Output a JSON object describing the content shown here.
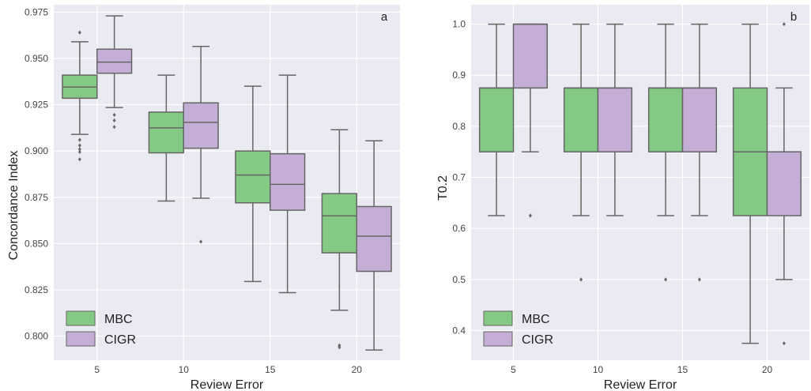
{
  "colors": {
    "MBC": "#84c984",
    "CIGR": "#c5aed5",
    "edge": "#666666",
    "panel_bg": "#eaeaf2",
    "grid": "#ffffff"
  },
  "chart_data": [
    {
      "type": "box",
      "panel_letter": "a",
      "xlabel": "Review Error",
      "ylabel": "Concordance Index",
      "categories": [
        "5",
        "10",
        "15",
        "20"
      ],
      "ylim": [
        0.787,
        0.979
      ],
      "yticks": [
        0.8,
        0.825,
        0.85,
        0.875,
        0.9,
        0.925,
        0.95,
        0.975
      ],
      "ytick_labels": [
        "0.800",
        "0.825",
        "0.850",
        "0.875",
        "0.900",
        "0.925",
        "0.950",
        "0.975"
      ],
      "grid": true,
      "legend_position": "lower-left",
      "series": [
        {
          "name": "MBC",
          "boxes": [
            {
              "whislo": 0.909,
              "q1": 0.9285,
              "med": 0.9345,
              "q3": 0.941,
              "whishi": 0.959,
              "fliers": [
                0.964,
                0.906,
                0.903,
                0.901,
                0.8995,
                0.8955
              ]
            },
            {
              "whislo": 0.873,
              "q1": 0.899,
              "med": 0.9125,
              "q3": 0.921,
              "whishi": 0.941,
              "fliers": []
            },
            {
              "whislo": 0.8295,
              "q1": 0.872,
              "med": 0.887,
              "q3": 0.9,
              "whishi": 0.935,
              "fliers": []
            },
            {
              "whislo": 0.814,
              "q1": 0.845,
              "med": 0.865,
              "q3": 0.877,
              "whishi": 0.9115,
              "fliers": [
                0.795,
                0.794
              ]
            }
          ]
        },
        {
          "name": "CIGR",
          "boxes": [
            {
              "whislo": 0.9235,
              "q1": 0.942,
              "med": 0.948,
              "q3": 0.955,
              "whishi": 0.973,
              "fliers": [
                0.9195,
                0.9165,
                0.913
              ]
            },
            {
              "whislo": 0.8745,
              "q1": 0.9015,
              "med": 0.9155,
              "q3": 0.926,
              "whishi": 0.9565,
              "fliers": [
                0.851
              ]
            },
            {
              "whislo": 0.8235,
              "q1": 0.868,
              "med": 0.882,
              "q3": 0.8985,
              "whishi": 0.941,
              "fliers": []
            },
            {
              "whislo": 0.7925,
              "q1": 0.835,
              "med": 0.854,
              "q3": 0.87,
              "whishi": 0.9055,
              "fliers": []
            }
          ]
        }
      ]
    },
    {
      "type": "box",
      "panel_letter": "b",
      "xlabel": "Review Error",
      "ylabel": "T0.2",
      "categories": [
        "5",
        "10",
        "15",
        "20"
      ],
      "ylim": [
        0.342,
        1.038
      ],
      "yticks": [
        0.4,
        0.5,
        0.6,
        0.7,
        0.8,
        0.9,
        1.0
      ],
      "ytick_labels": [
        "0.4",
        "0.5",
        "0.6",
        "0.7",
        "0.8",
        "0.9",
        "1.0"
      ],
      "grid": true,
      "legend_position": "lower-left",
      "series": [
        {
          "name": "MBC",
          "boxes": [
            {
              "whislo": 0.625,
              "q1": 0.75,
              "med": 0.875,
              "q3": 0.875,
              "whishi": 1.0,
              "fliers": []
            },
            {
              "whislo": 0.625,
              "q1": 0.75,
              "med": 0.875,
              "q3": 0.875,
              "whishi": 1.0,
              "fliers": [
                0.5
              ]
            },
            {
              "whislo": 0.625,
              "q1": 0.75,
              "med": 0.875,
              "q3": 0.875,
              "whishi": 1.0,
              "fliers": [
                0.5
              ]
            },
            {
              "whislo": 0.375,
              "q1": 0.625,
              "med": 0.75,
              "q3": 0.875,
              "whishi": 1.0,
              "fliers": []
            }
          ]
        },
        {
          "name": "CIGR",
          "boxes": [
            {
              "whislo": 0.75,
              "q1": 0.875,
              "med": 1.0,
              "q3": 1.0,
              "whishi": 1.0,
              "fliers": [
                0.625
              ]
            },
            {
              "whislo": 0.625,
              "q1": 0.75,
              "med": 0.875,
              "q3": 0.875,
              "whishi": 1.0,
              "fliers": []
            },
            {
              "whislo": 0.625,
              "q1": 0.75,
              "med": 0.875,
              "q3": 0.875,
              "whishi": 1.0,
              "fliers": [
                0.5
              ]
            },
            {
              "whislo": 0.5,
              "q1": 0.625,
              "med": 0.75,
              "q3": 0.75,
              "whishi": 0.875,
              "fliers": [
                1.0,
                0.375
              ]
            }
          ]
        }
      ]
    }
  ]
}
